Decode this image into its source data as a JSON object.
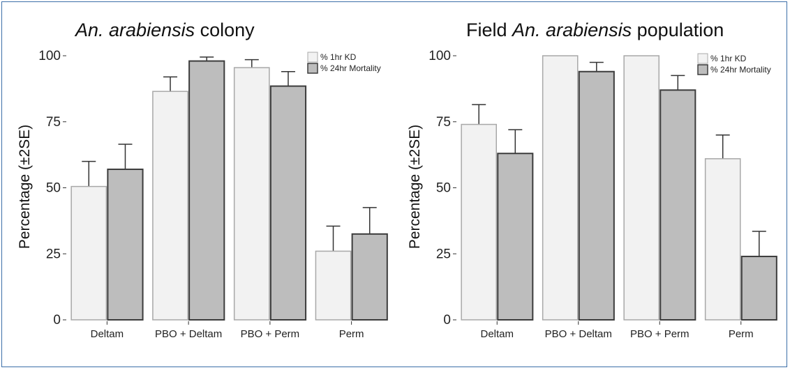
{
  "colors": {
    "kd_fill": "#f2f2f2",
    "kd_stroke": "#a8a8a8",
    "mort_fill": "#bdbdbd",
    "mort_stroke": "#3c3c3c",
    "frame": "#3b6ea8"
  },
  "chart_data": [
    {
      "type": "bar",
      "title_italic": "An. arabiensis",
      "title_suffix": " colony",
      "ylabel": "Percentage (±2SE)",
      "ylim": [
        0,
        100
      ],
      "yticks": [
        0,
        25,
        50,
        75,
        100
      ],
      "categories": [
        "Deltam",
        "PBO + Deltam",
        "PBO + Perm",
        "Perm"
      ],
      "legend_position": "top-right",
      "series": [
        {
          "name": "% 1hr KD",
          "values": [
            50.5,
            86.5,
            95.5,
            26
          ],
          "errors": [
            9.5,
            5.5,
            3,
            9.5
          ]
        },
        {
          "name": "% 24hr Mortality",
          "values": [
            57,
            98,
            88.5,
            32.5
          ],
          "errors": [
            9.5,
            1.5,
            5.5,
            10
          ]
        }
      ]
    },
    {
      "type": "bar",
      "title_prefix": "Field ",
      "title_italic": "An. arabiensis",
      "title_suffix": " population",
      "ylabel": "Percentage (±2SE)",
      "ylim": [
        0,
        100
      ],
      "yticks": [
        0,
        25,
        50,
        75,
        100
      ],
      "categories": [
        "Deltam",
        "PBO + Deltam",
        "PBO + Perm",
        "Perm"
      ],
      "legend_position": "top-right",
      "series": [
        {
          "name": "% 1hr KD",
          "values": [
            74,
            100,
            100,
            61
          ],
          "errors": [
            7.5,
            0,
            0,
            9
          ]
        },
        {
          "name": "% 24hr Mortality",
          "values": [
            63,
            94,
            87,
            24
          ],
          "errors": [
            9,
            3.5,
            5.5,
            9.5
          ]
        }
      ]
    }
  ]
}
